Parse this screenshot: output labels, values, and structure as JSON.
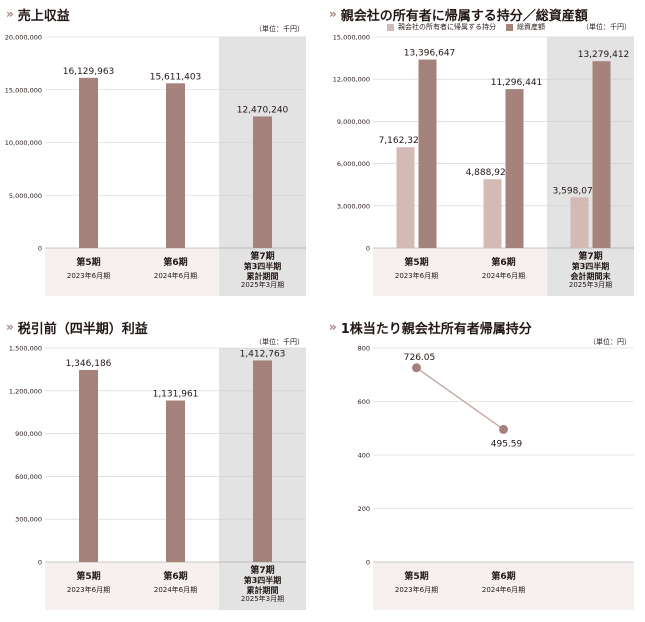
{
  "colors": {
    "bar_main": "#a5827c",
    "bar_light": "#d3bab4",
    "panel_bg": "#f6f0ee",
    "highlight_bg": "#e3e3e3",
    "grid": "#cfcfcf",
    "accent": "#a87f7a",
    "line": "#c4a7a2"
  },
  "panels": {
    "revenue": {
      "title": "売上収益",
      "unit": "（単位：千円）",
      "legend": []
    },
    "equity": {
      "title": "親会社の所有者に帰属する持分／総資産額",
      "unit": "（単位：千円）",
      "legend": [
        "親会社の所有者に帰属する持分",
        "総資産額"
      ]
    },
    "pretax": {
      "title": "税引前（四半期）利益",
      "unit": "（単位：千円）",
      "legend": []
    },
    "eps": {
      "title": "1株当たり親会社所有者帰属持分",
      "unit": "（単位：円）",
      "legend": []
    }
  },
  "chart_data": [
    {
      "id": "revenue",
      "type": "bar",
      "title": "売上収益",
      "ylim": [
        0,
        20000000
      ],
      "yticks": [
        "20,000,000",
        "15,000,000",
        "10,000,000",
        "5,000,000",
        "0"
      ],
      "categories": [
        {
          "main": "第5期",
          "sub": [
            "2023年6月期"
          ]
        },
        {
          "main": "第6期",
          "sub": [
            "2024年6月期"
          ]
        },
        {
          "main": "第7期",
          "sub": [
            "第3四半期",
            "累計期間",
            "2025年3月期"
          ]
        }
      ],
      "series": [
        {
          "values": [
            16129963,
            15611403,
            12470240
          ],
          "labels": [
            "16,129,963",
            "15,611,403",
            "12,470,240"
          ]
        }
      ],
      "grid": true
    },
    {
      "id": "equity",
      "type": "bar",
      "title": "親会社の所有者に帰属する持分／総資産額",
      "ylim": [
        0,
        15000000
      ],
      "yticks": [
        "15,000,000",
        "12,000,000",
        "9,000,000",
        "6,000,000",
        "3,000,000",
        "0"
      ],
      "categories": [
        {
          "main": "第5期",
          "sub": [
            "2023年6月期"
          ]
        },
        {
          "main": "第6期",
          "sub": [
            "2024年6月期"
          ]
        },
        {
          "main": "第7期",
          "sub": [
            "第3四半期",
            "会計期間末",
            "2025年3月期"
          ]
        }
      ],
      "series": [
        {
          "name": "親会社の所有者に帰属する持分",
          "values": [
            7162324,
            4888927,
            3598078
          ],
          "labels": [
            "7,162,324",
            "4,888,927",
            "3,598,078"
          ]
        },
        {
          "name": "総資産額",
          "values": [
            13396647,
            11296441,
            13279412
          ],
          "labels": [
            "13,396,647",
            "11,296,441",
            "13,279,412"
          ]
        }
      ],
      "legend_position": "top",
      "grid": true
    },
    {
      "id": "pretax",
      "type": "bar",
      "title": "税引前（四半期）利益",
      "ylim": [
        0,
        1500000
      ],
      "yticks": [
        "1,500,000",
        "1,200,000",
        "900,000",
        "600,000",
        "300,000",
        "0"
      ],
      "categories": [
        {
          "main": "第5期",
          "sub": [
            "2023年6月期"
          ]
        },
        {
          "main": "第6期",
          "sub": [
            "2024年6月期"
          ]
        },
        {
          "main": "第7期",
          "sub": [
            "第3四半期",
            "累計期間",
            "2025年3月期"
          ]
        }
      ],
      "series": [
        {
          "values": [
            1346186,
            1131961,
            1412763
          ],
          "labels": [
            "1,346,186",
            "1,131,961",
            "1,412,763"
          ]
        }
      ],
      "grid": true
    },
    {
      "id": "eps",
      "type": "line",
      "title": "1株当たり親会社所有者帰属持分",
      "ylim": [
        0,
        800
      ],
      "yticks": [
        "800",
        "600",
        "400",
        "200",
        "0"
      ],
      "categories": [
        {
          "main": "第5期",
          "sub": [
            "2023年6月期"
          ]
        },
        {
          "main": "第6期",
          "sub": [
            "2024年6月期"
          ]
        }
      ],
      "series": [
        {
          "values": [
            726.05,
            495.59
          ],
          "labels": [
            "726.05",
            "495.59"
          ]
        }
      ],
      "grid": true
    }
  ]
}
